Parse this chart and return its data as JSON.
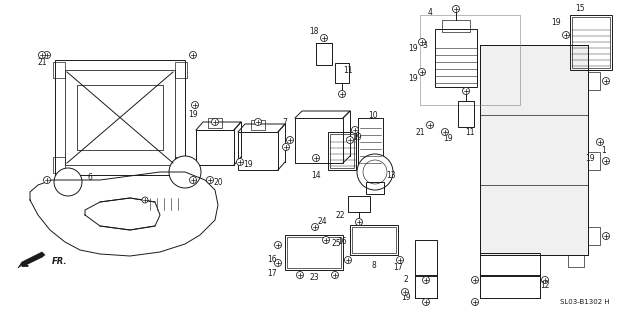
{
  "bg_color": "#ffffff",
  "line_color": "#1a1a1a",
  "ref_code": "SL03-B1302 H",
  "fig_width": 6.4,
  "fig_height": 3.2,
  "dpi": 100
}
